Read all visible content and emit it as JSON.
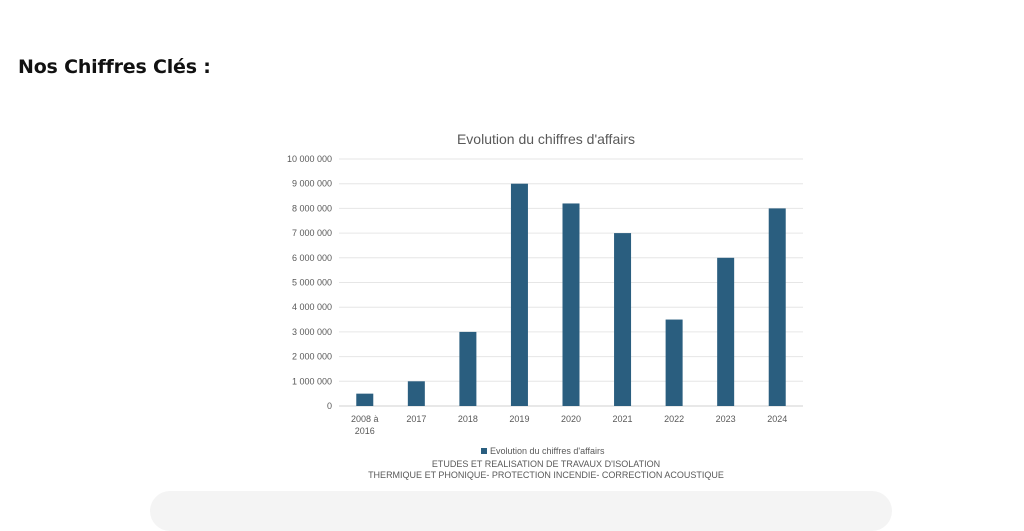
{
  "section": {
    "title": "Nos Chiffres Clés :"
  },
  "chart_data": {
    "type": "bar",
    "title": "Evolution du chiffres d'affairs",
    "categories": [
      "2008 à 2016",
      "2017",
      "2018",
      "2019",
      "2020",
      "2021",
      "2022",
      "2023",
      "2024"
    ],
    "series": [
      {
        "name": "Evolution du chiffres d'affairs",
        "values": [
          500000,
          1000000,
          3000000,
          9000000,
          8200000,
          7000000,
          3500000,
          6000000,
          8000000
        ]
      }
    ],
    "yticks": [
      "0",
      "1 000 000",
      "2 000 000",
      "3 000 000",
      "4 000 000",
      "5 000 000",
      "6 000 000",
      "7 000 000",
      "8 000 000",
      "9 000 000",
      "10 000 000"
    ],
    "ylim": [
      0,
      10000000
    ],
    "grid": true,
    "legend": "bottom",
    "bar_color": "#2a5e7f"
  },
  "caption": {
    "line1": "ETUDES ET REALISATION DE TRAVAUX D'ISOLATION",
    "line2": "THERMIQUE ET PHONIQUE- PROTECTION INCENDIE- CORRECTION ACOUSTIQUE"
  }
}
